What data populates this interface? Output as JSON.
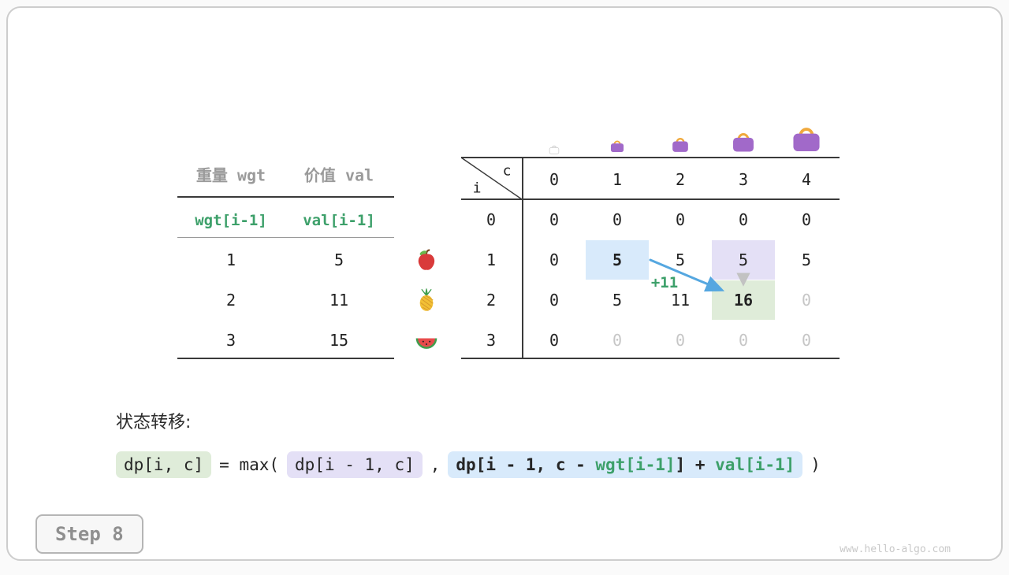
{
  "colors": {
    "green": "#3da06a",
    "arrow_blue": "#55a7e0",
    "arrow_gray": "#c2c2c2",
    "hl_blue": "#d8eafb",
    "hl_purple": "#e4e0f6",
    "hl_green": "#dfecd9",
    "bag_purple": "#a169c9",
    "bag_handle": "#f0a93c"
  },
  "items_table": {
    "headers": [
      "重量 wgt",
      "价值 val"
    ],
    "var_row": [
      "wgt[i-1]",
      "val[i-1]"
    ],
    "rows": [
      {
        "wgt": "1",
        "val": "5",
        "icon": "apple"
      },
      {
        "wgt": "2",
        "val": "11",
        "icon": "pineapple"
      },
      {
        "wgt": "3",
        "val": "15",
        "icon": "watermelon"
      }
    ]
  },
  "dp_table": {
    "corner": {
      "row_var": "i",
      "col_var": "c"
    },
    "col_headers": [
      "0",
      "1",
      "2",
      "3",
      "4"
    ],
    "row_headers": [
      "0",
      "1",
      "2",
      "3"
    ],
    "bag_capacities": [
      0,
      1,
      2,
      3,
      4
    ],
    "cells": [
      [
        {
          "t": "0"
        },
        {
          "t": "0"
        },
        {
          "t": "0"
        },
        {
          "t": "0"
        },
        {
          "t": "0"
        }
      ],
      [
        {
          "t": "0"
        },
        {
          "t": "5",
          "hl": "blue",
          "bold": true
        },
        {
          "t": "5"
        },
        {
          "t": "5",
          "hl": "purple"
        },
        {
          "t": "5"
        }
      ],
      [
        {
          "t": "0"
        },
        {
          "t": "5"
        },
        {
          "t": "11"
        },
        {
          "t": "16",
          "hl": "green",
          "bold": true
        },
        {
          "t": "0",
          "muted": true
        }
      ],
      [
        {
          "t": "0"
        },
        {
          "t": "0",
          "muted": true
        },
        {
          "t": "0",
          "muted": true
        },
        {
          "t": "0",
          "muted": true
        },
        {
          "t": "0",
          "muted": true
        }
      ]
    ]
  },
  "annotation": {
    "plus": "+11"
  },
  "transition": {
    "label": "状态转移:",
    "lhs": "dp[i, c]",
    "eq": "= max(",
    "opt1": "dp[i - 1, c]",
    "comma": ",",
    "opt2_prefix": "dp[i - 1, c - ",
    "opt2_wgt": "wgt[i-1]",
    "opt2_mid": "] + ",
    "opt2_val": "val[i-1]",
    "close": ")"
  },
  "step": {
    "label": "Step 8"
  },
  "watermark": "www.hello-algo.com"
}
